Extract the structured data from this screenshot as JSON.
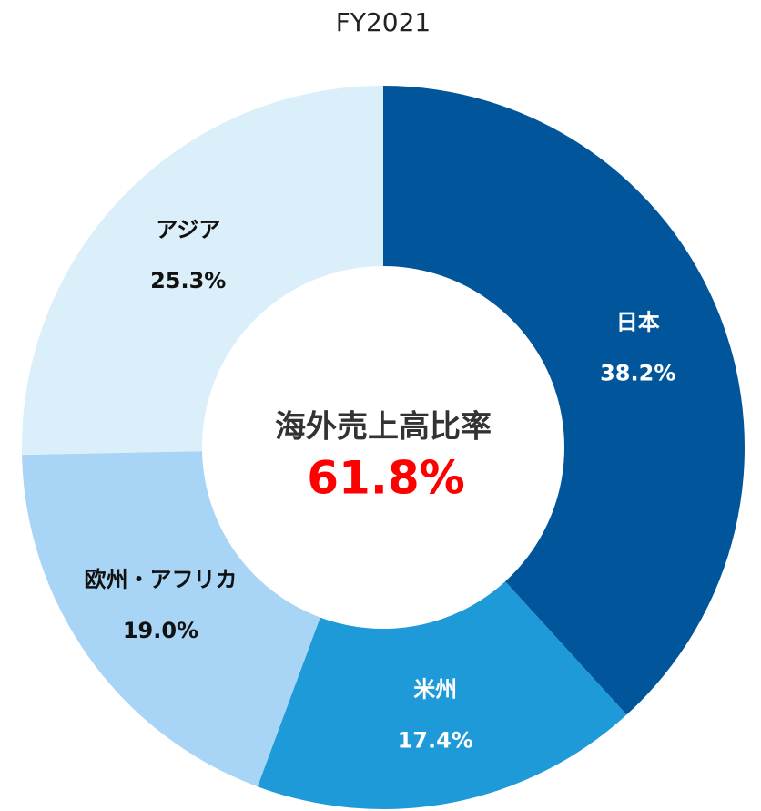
{
  "chart_data": {
    "type": "donut",
    "title": "FY2021",
    "categories": [
      "日本",
      "米州",
      "欧州・アフリカ",
      "アジア"
    ],
    "values": [
      38.2,
      17.4,
      19.0,
      25.3
    ],
    "value_labels": [
      "38.2%",
      "17.4%",
      "19.0%",
      "25.3%"
    ],
    "colors": [
      "#00559b",
      "#1e9ad8",
      "#a8d5f5",
      "#daeff9"
    ],
    "annotations": [
      "海外売上高比率",
      "61.8%"
    ]
  }
}
